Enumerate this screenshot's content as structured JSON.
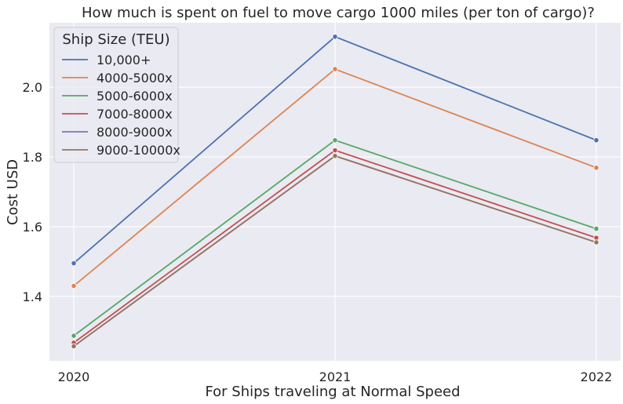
{
  "chart_data": {
    "type": "line",
    "title": "How much is spent on fuel to move cargo 1000 miles (per ton of cargo)?",
    "xlabel": "For Ships traveling at Normal Speed",
    "ylabel": "Cost USD",
    "categories": [
      "2020",
      "2021",
      "2022"
    ],
    "y_ticks": [
      "1.4",
      "1.6",
      "1.8",
      "2.0"
    ],
    "ylim": [
      1.215,
      2.185
    ],
    "grid": true,
    "legend": {
      "title": "Ship Size (TEU)",
      "placement": "top-left"
    },
    "series": [
      {
        "name": "10,000+",
        "color": "#4c72b0",
        "values": [
          1.495,
          2.145,
          1.848
        ]
      },
      {
        "name": "4000-5000x",
        "color": "#dd8452",
        "values": [
          1.43,
          2.052,
          1.769
        ]
      },
      {
        "name": "5000-6000x",
        "color": "#55a868",
        "values": [
          1.287,
          1.848,
          1.594
        ]
      },
      {
        "name": "7000-8000x",
        "color": "#c44e52",
        "values": [
          1.267,
          1.819,
          1.568
        ]
      },
      {
        "name": "8000-9000x",
        "color": "#8172b3",
        "values": [
          1.257,
          1.803,
          1.555
        ]
      },
      {
        "name": "9000-10000x",
        "color": "#937860",
        "values": [
          1.257,
          1.803,
          1.555
        ]
      }
    ]
  }
}
